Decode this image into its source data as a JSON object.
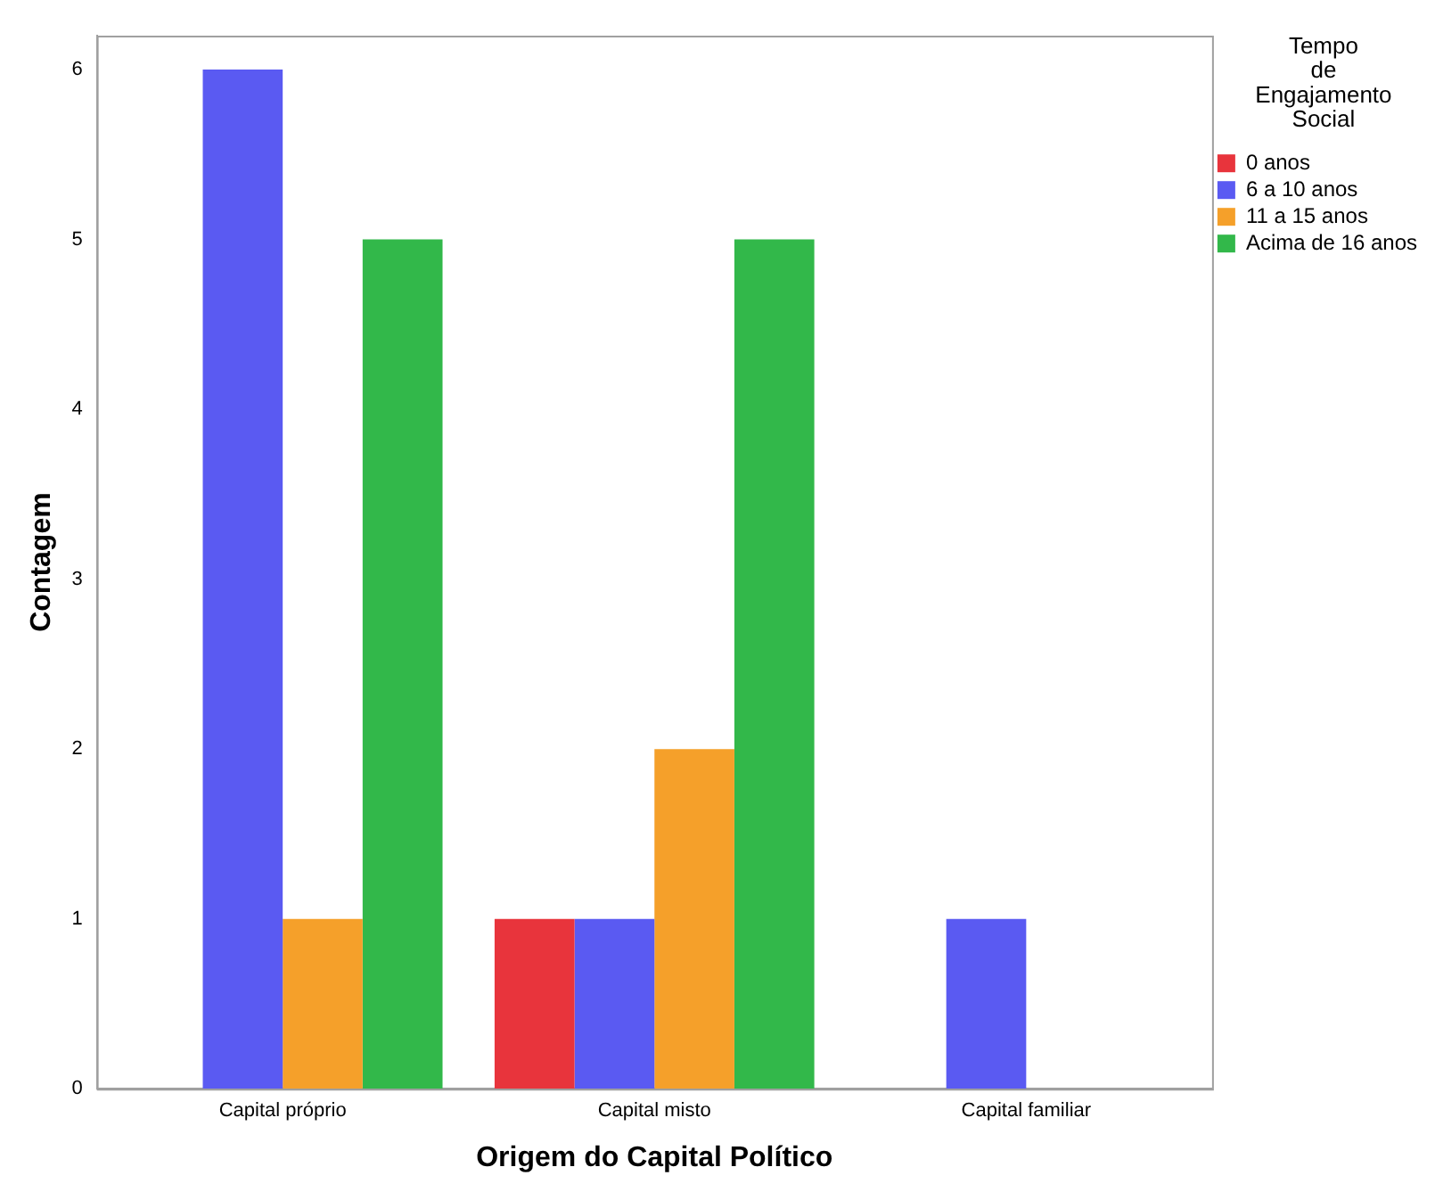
{
  "chart_data": {
    "type": "bar",
    "xlabel": "Origem do Capital Político",
    "ylabel": "Contagem",
    "legend_title": "Tempo de Engajamento Social",
    "legend": "top right",
    "grid": false,
    "categories": [
      "Capital próprio",
      "Capital misto",
      "Capital familiar"
    ],
    "series": [
      {
        "name": "0 anos",
        "color": "#e8343c",
        "values": [
          0,
          1,
          0
        ]
      },
      {
        "name": "6 a 10 anos",
        "color": "#5a5af2",
        "values": [
          6,
          1,
          1
        ]
      },
      {
        "name": "11 a 15 anos",
        "color": "#f5a02a",
        "values": [
          1,
          2,
          0
        ]
      },
      {
        "name": "Acima de 16 anos",
        "color": "#32b84a",
        "values": [
          5,
          5,
          0
        ]
      }
    ],
    "ylim": [
      0,
      6.2
    ],
    "yticks": [
      0,
      1,
      2,
      3,
      4,
      5,
      6
    ]
  }
}
